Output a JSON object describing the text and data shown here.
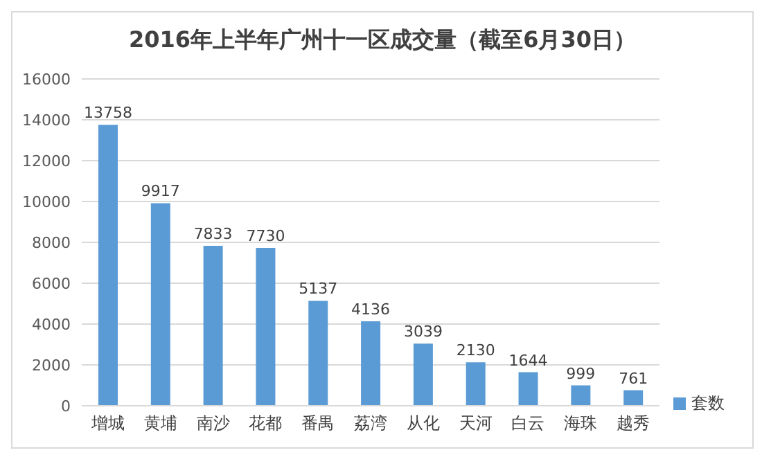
{
  "chart_data": {
    "type": "bar",
    "title": "2016年上半年广州十一区成交量（截至6月30日）",
    "categories": [
      "增城",
      "黄埔",
      "南沙",
      "花都",
      "番禺",
      "荔湾",
      "从化",
      "天河",
      "白云",
      "海珠",
      "越秀"
    ],
    "series": [
      {
        "name": "套数",
        "color": "#5b9bd5",
        "values": [
          13758,
          9917,
          7833,
          7730,
          5137,
          4136,
          3039,
          2130,
          1644,
          999,
          761
        ]
      }
    ],
    "ylim": [
      0,
      16000
    ],
    "yticks": [
      0,
      2000,
      4000,
      6000,
      8000,
      10000,
      12000,
      14000,
      16000
    ],
    "grid": "y",
    "legend": "right",
    "data_labels": true
  }
}
